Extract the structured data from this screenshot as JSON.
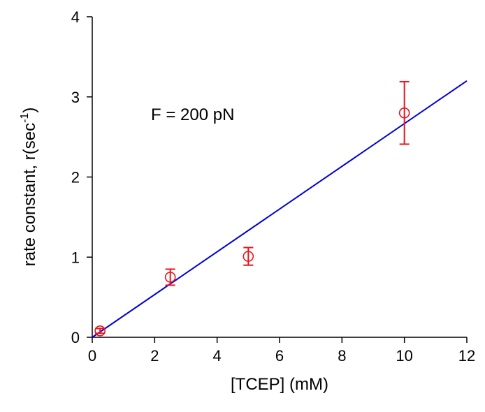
{
  "chart_data": {
    "type": "scatter",
    "title": "",
    "xlabel": "[TCEP] (mM)",
    "ylabel": "rate constant, r(sec",
    "ylabel_superscript": "-1",
    "ylabel_suffix": ")",
    "xlim": [
      0,
      12
    ],
    "ylim": [
      0,
      4
    ],
    "xticks": [
      0,
      2,
      4,
      6,
      8,
      10,
      12
    ],
    "yticks": [
      0,
      1,
      2,
      3,
      4
    ],
    "grid": false,
    "annotation": "F = 200 pN",
    "colors": {
      "points": "#e8151b",
      "fit": "#0000d6",
      "axes": "#000000"
    },
    "series": [
      {
        "type": "scatter",
        "x": [
          0.25,
          2.5,
          5,
          10
        ],
        "y": [
          0.08,
          0.75,
          1.01,
          2.8
        ],
        "err": [
          0.03,
          0.1,
          0.11,
          0.39
        ]
      },
      {
        "type": "line",
        "x": [
          0,
          12
        ],
        "y": [
          0,
          3.2
        ]
      }
    ]
  }
}
